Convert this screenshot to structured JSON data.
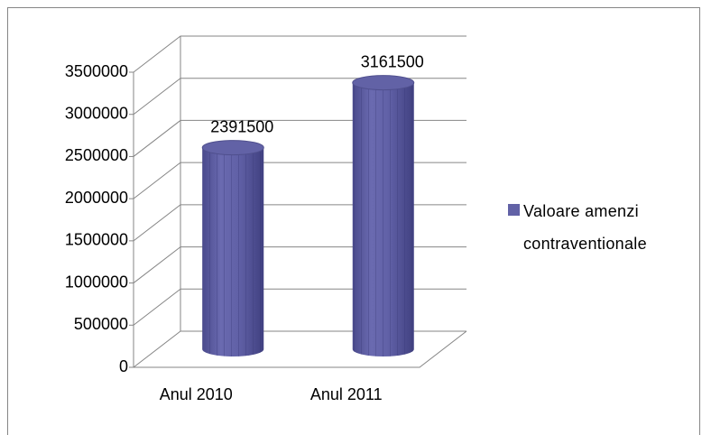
{
  "chart_data": {
    "type": "bar",
    "categories": [
      "Anul 2010",
      "Anul 2011"
    ],
    "series": [
      {
        "name": "Valoare amenzi contraventionale",
        "color": "#6262a6",
        "values": [
          2391500,
          3161500
        ]
      }
    ],
    "ylim": [
      0,
      3500000
    ],
    "yticks": [
      0,
      500000,
      1000000,
      1500000,
      2000000,
      2500000,
      3000000,
      3500000
    ],
    "grid": true,
    "legend": "right"
  }
}
